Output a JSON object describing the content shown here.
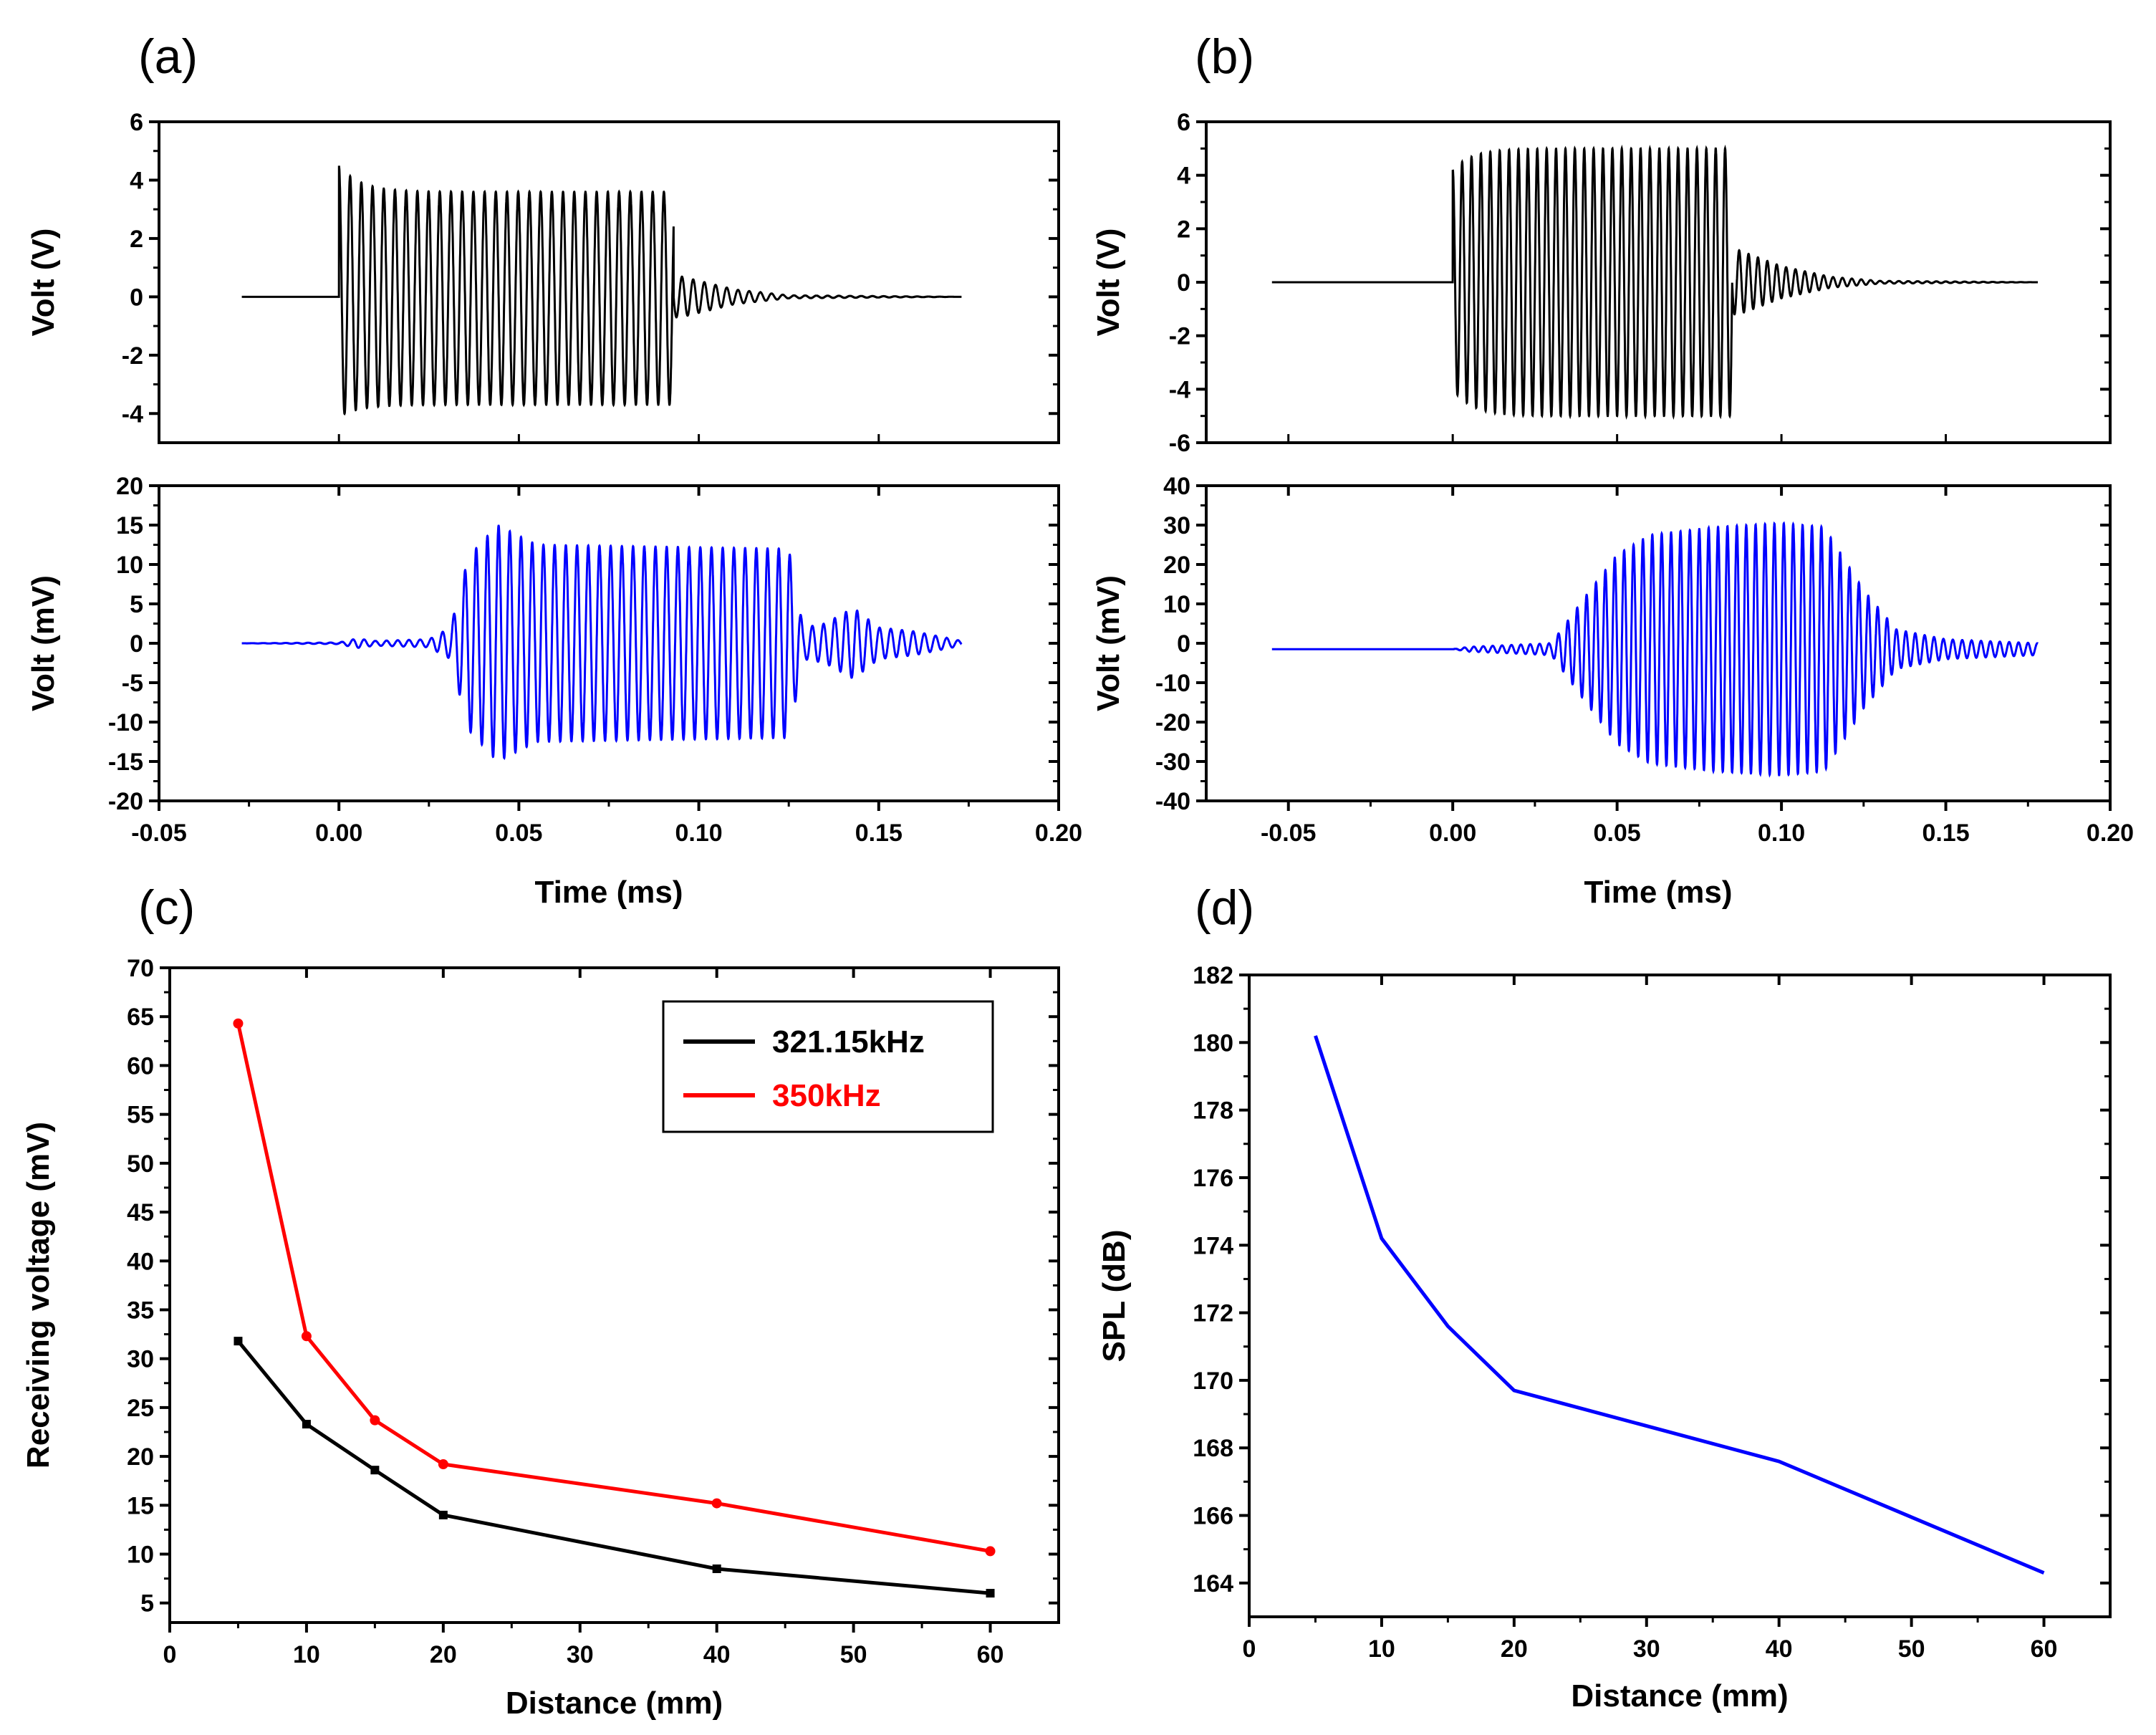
{
  "panels": [
    {
      "label": "(a)"
    },
    {
      "label": "(b)"
    },
    {
      "label": "(c)"
    },
    {
      "label": "(d)"
    }
  ],
  "chart_data": [
    {
      "id": "a-top",
      "panel": "(a)",
      "type": "line",
      "title": "",
      "xlabel": "",
      "ylabel": "Volt (V)",
      "xlim": [
        -0.05,
        0.2
      ],
      "ylim": [
        -5,
        6
      ],
      "yticks": [
        -4,
        -2,
        0,
        2,
        4,
        6
      ],
      "xticks": [],
      "color": "#000000",
      "waveform": {
        "t_start": -0.027,
        "burst_start": 0.0,
        "burst_end": 0.093,
        "t_end": 0.173,
        "frequency_kHz": 321.15,
        "amp_pos": 3.6,
        "amp_neg": -3.7,
        "initial_peak": 4.5,
        "initial_trough": -4.1,
        "ringdown": [
          {
            "t": 0.095,
            "v": 0.7
          },
          {
            "t": 0.11,
            "v": 0.25
          },
          {
            "t": 0.125,
            "v": 0.05
          }
        ]
      }
    },
    {
      "id": "a-bottom",
      "panel": "(a)",
      "type": "line",
      "title": "",
      "xlabel": "Time (ms)",
      "ylabel": "Volt (mV)",
      "xlim": [
        -0.05,
        0.2
      ],
      "ylim": [
        -20,
        20
      ],
      "yticks": [
        -20,
        -15,
        -10,
        -5,
        0,
        5,
        10,
        15,
        20
      ],
      "xticks": [
        -0.05,
        0.0,
        0.05,
        0.1,
        0.15,
        0.2
      ],
      "xticklabels": [
        "-0.05",
        "0.00",
        "0.05",
        "0.10",
        "0.15",
        "0.20"
      ],
      "color": "#0000ff",
      "waveform": {
        "t_start": -0.027,
        "t_end": 0.173,
        "frequency_kHz": 321.15,
        "envelope": [
          {
            "t": -0.027,
            "a": 0
          },
          {
            "t": 0.0,
            "a": 0.1
          },
          {
            "t": 0.005,
            "a": 0.6
          },
          {
            "t": 0.01,
            "a": 0.3
          },
          {
            "t": 0.025,
            "a": 0.5
          },
          {
            "t": 0.031,
            "a": 2
          },
          {
            "t": 0.036,
            "a": 11
          },
          {
            "t": 0.044,
            "a": 15
          },
          {
            "t": 0.055,
            "a": 12.5
          },
          {
            "t": 0.125,
            "a": 12
          },
          {
            "t": 0.129,
            "a": 2
          },
          {
            "t": 0.135,
            "a": 2.5
          },
          {
            "t": 0.143,
            "a": 4.5
          },
          {
            "t": 0.15,
            "a": 2
          },
          {
            "t": 0.16,
            "a": 1.5
          },
          {
            "t": 0.173,
            "a": 0.3
          }
        ]
      }
    },
    {
      "id": "b-top",
      "panel": "(b)",
      "type": "line",
      "title": "",
      "xlabel": "",
      "ylabel": "Volt (V)",
      "xlim": [
        -0.075,
        0.2
      ],
      "ylim": [
        -6,
        6
      ],
      "yticks": [
        -6,
        -4,
        -2,
        0,
        2,
        4,
        6
      ],
      "xticks": [],
      "color": "#000000",
      "waveform": {
        "t_start": -0.055,
        "burst_start": 0.0,
        "burst_end": 0.085,
        "t_end": 0.178,
        "frequency_kHz": 350,
        "amp_pos": 5.0,
        "amp_neg": -5.0,
        "initial_peak": 4.2,
        "initial_trough": -4.0,
        "ringdown": [
          {
            "t": 0.087,
            "v": 1.2
          },
          {
            "t": 0.1,
            "v": 0.6
          },
          {
            "t": 0.115,
            "v": 0.2
          },
          {
            "t": 0.13,
            "v": 0.05
          }
        ]
      }
    },
    {
      "id": "b-bottom",
      "panel": "(b)",
      "type": "line",
      "title": "",
      "xlabel": "Time (ms)",
      "ylabel": "Volt (mV)",
      "xlim": [
        -0.075,
        0.2
      ],
      "ylim": [
        -40,
        40
      ],
      "yticks": [
        -40,
        -30,
        -20,
        -10,
        0,
        10,
        20,
        30,
        40
      ],
      "xticks": [
        -0.05,
        0.0,
        0.05,
        0.1,
        0.15,
        0.2
      ],
      "xticklabels": [
        "-0.05",
        "0.00",
        "0.05",
        "0.10",
        "0.15",
        "0.20"
      ],
      "color": "#0000ff",
      "waveform": {
        "t_start": -0.055,
        "t_end": 0.178,
        "frequency_kHz": 350,
        "offset": -1.5,
        "envelope": [
          {
            "t": -0.055,
            "a": 0
          },
          {
            "t": 0.0,
            "a": 0
          },
          {
            "t": 0.005,
            "a": 0.6
          },
          {
            "t": 0.03,
            "a": 1.5
          },
          {
            "t": 0.04,
            "a": 13
          },
          {
            "t": 0.05,
            "a": 24
          },
          {
            "t": 0.06,
            "a": 29
          },
          {
            "t": 0.08,
            "a": 31
          },
          {
            "t": 0.1,
            "a": 32
          },
          {
            "t": 0.113,
            "a": 31
          },
          {
            "t": 0.125,
            "a": 15
          },
          {
            "t": 0.135,
            "a": 5
          },
          {
            "t": 0.15,
            "a": 2.5
          },
          {
            "t": 0.178,
            "a": 1.5
          }
        ]
      }
    },
    {
      "id": "c",
      "panel": "(c)",
      "type": "line",
      "title": "",
      "xlabel": "Distance (mm)",
      "ylabel": "Receiving voltage (mV)",
      "xlim": [
        0,
        65
      ],
      "ylim": [
        3,
        70
      ],
      "xticks": [
        0,
        10,
        20,
        30,
        40,
        50,
        60
      ],
      "yticks": [
        5,
        10,
        15,
        20,
        25,
        30,
        35,
        40,
        45,
        50,
        55,
        60,
        65,
        70
      ],
      "x": [
        5,
        10,
        15,
        20,
        40,
        60
      ],
      "series": [
        {
          "name": "321.15kHz",
          "color": "#000000",
          "marker": "square",
          "values": [
            31.8,
            23.3,
            18.6,
            14.0,
            8.5,
            6.0
          ]
        },
        {
          "name": "350kHz",
          "color": "#ff0000",
          "marker": "circle",
          "values": [
            64.3,
            32.3,
            23.7,
            19.2,
            15.2,
            10.3
          ]
        }
      ],
      "legend": "top-right"
    },
    {
      "id": "d",
      "panel": "(d)",
      "type": "line",
      "title": "",
      "xlabel": "Distance (mm)",
      "ylabel": "SPL (dB)",
      "xlim": [
        0,
        65
      ],
      "ylim": [
        163,
        182
      ],
      "xticks": [
        0,
        10,
        20,
        30,
        40,
        50,
        60
      ],
      "yticks": [
        164,
        166,
        168,
        170,
        172,
        174,
        176,
        178,
        180,
        182
      ],
      "x": [
        5,
        10,
        15,
        20,
        40,
        60
      ],
      "series": [
        {
          "name": "SPL",
          "color": "#0000ff",
          "values": [
            180.2,
            174.2,
            171.6,
            169.7,
            167.6,
            164.3
          ]
        }
      ]
    }
  ]
}
